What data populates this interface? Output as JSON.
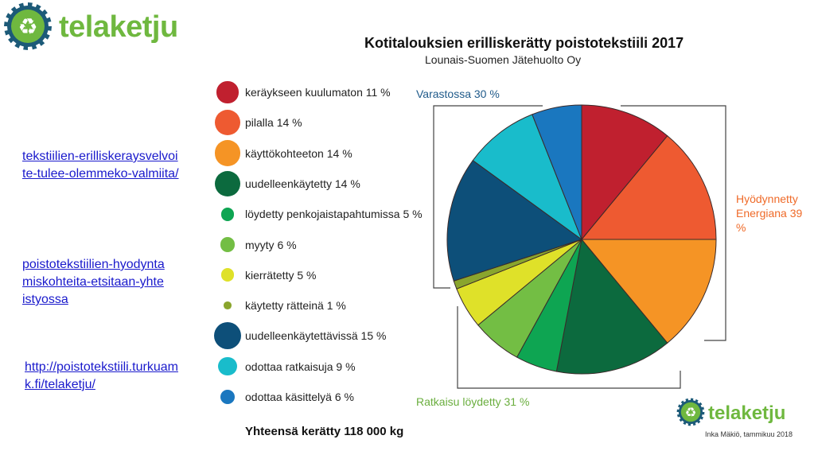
{
  "logo": {
    "name_part1": "tela",
    "name_part2": "ketju",
    "color1": "#6fb83f",
    "color2": "#6fb83f",
    "badge_color": "#1c5a78",
    "icon": "recycle-icon"
  },
  "links": [
    "tekstiilien-erilliskeraysvelvoite-tulee-olemmeko-valmiita/",
    "poistotekstiilien-hyodyntamiskohteita-etsitaan-yhteistyossa",
    "http://poistotekstiili.turkuamk.fi/telaketju/"
  ],
  "credit": "Inka Mäkiö, tammikuu 2018",
  "total_label": "Yhteensä kerätty 118 000 kg",
  "chart_data": {
    "type": "pie",
    "title": "Kotitalouksien erilliskerätty poistotekstiili 2017",
    "subtitle": "Lounais-Suomen Jätehuolto Oy",
    "slices": [
      {
        "label": "keräykseen kuulumaton 11 %",
        "value": 11,
        "color": "#c0202f"
      },
      {
        "label": "pilalla 14 %",
        "value": 14,
        "color": "#ee5a31"
      },
      {
        "label": "käyttökohteeton 14 %",
        "value": 14,
        "color": "#f59425"
      },
      {
        "label": "uudelleenkäytetty 14 %",
        "value": 14,
        "color": "#0c6a3e"
      },
      {
        "label": "löydetty penkojaistapahtumissa 5 %",
        "value": 5,
        "color": "#0ea552"
      },
      {
        "label": "myyty 6 %",
        "value": 6,
        "color": "#73be44"
      },
      {
        "label": "kierrätetty 5 %",
        "value": 5,
        "color": "#dfe129"
      },
      {
        "label": "käytetty rätteinä 1 %",
        "value": 1,
        "color": "#8aa52d"
      },
      {
        "label": "uudelleenkäytettävissä 15 %",
        "value": 15,
        "color": "#0d4f79"
      },
      {
        "label": "odottaa ratkaisuja 9 %",
        "value": 9,
        "color": "#19bccb"
      },
      {
        "label": "odottaa käsittelyä 6 %",
        "value": 6,
        "color": "#1a77bf"
      }
    ],
    "groups": [
      {
        "label": "Varastossa 30 %",
        "color": "#1f5a8a"
      },
      {
        "label": "Hyödynnetty Energiana 39 %",
        "color": "#ef6a28"
      },
      {
        "label": "Ratkaisu löydetty 31 %",
        "color": "#6aae3e"
      }
    ]
  }
}
